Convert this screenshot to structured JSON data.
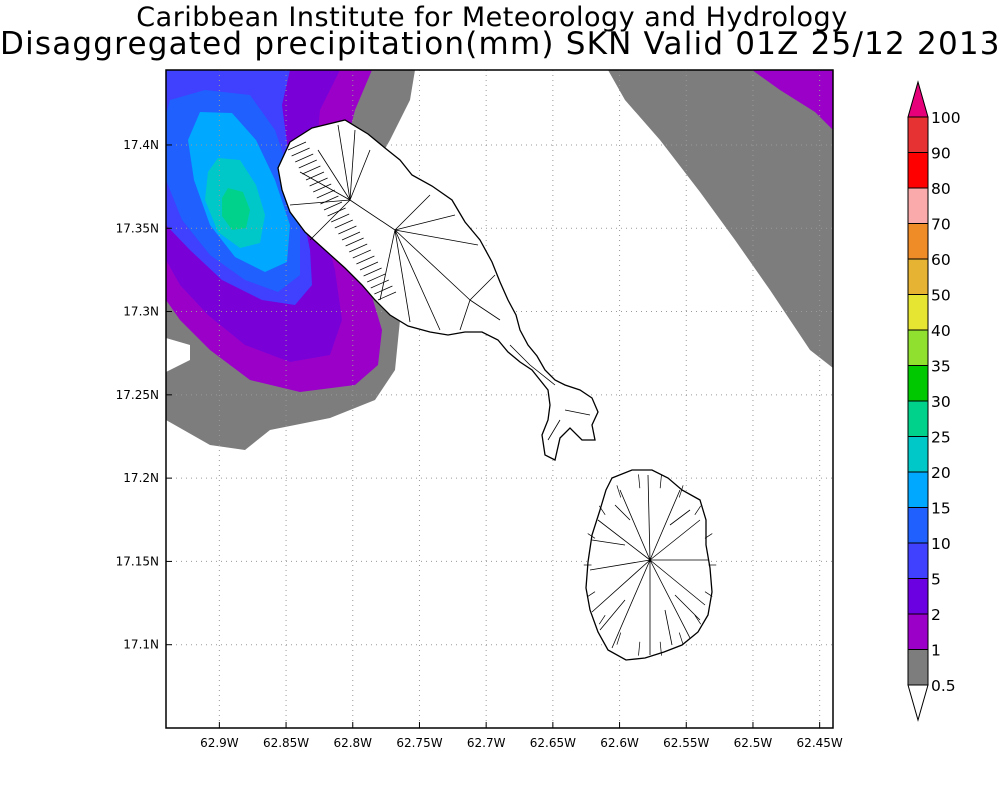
{
  "header": {
    "line1": "Caribbean Institute for Meteorology and Hydrology",
    "line2": "Disaggregated precipitation(mm) SKN Valid 01Z 25/12 2013"
  },
  "map": {
    "region": "SKN",
    "lon_range": [
      -62.94,
      -62.44
    ],
    "lat_range": [
      17.05,
      17.445
    ],
    "lon_ticks": [
      "62.9W",
      "62.85W",
      "62.8W",
      "62.75W",
      "62.7W",
      "62.65W",
      "62.6W",
      "62.55W",
      "62.5W",
      "62.45W"
    ],
    "lat_ticks": [
      "17.4N",
      "17.35N",
      "17.3N",
      "17.25N",
      "17.2N",
      "17.15N",
      "17.1N"
    ],
    "grid": "dotted"
  },
  "legend": {
    "levels": [
      "0.5",
      "1",
      "2",
      "5",
      "10",
      "15",
      "20",
      "25",
      "30",
      "35",
      "40",
      "50",
      "60",
      "70",
      "80",
      "90",
      "100"
    ],
    "colors": [
      "#7d7d7d",
      "#9b00c8",
      "#6b00e0",
      "#4040ff",
      "#1f60ff",
      "#00a8ff",
      "#00c8c8",
      "#00d28c",
      "#00c800",
      "#90e030",
      "#e6e632",
      "#e6b432",
      "#f08c28",
      "#faaaaa",
      "#ff0000",
      "#e63232",
      "#e6007a"
    ]
  }
}
